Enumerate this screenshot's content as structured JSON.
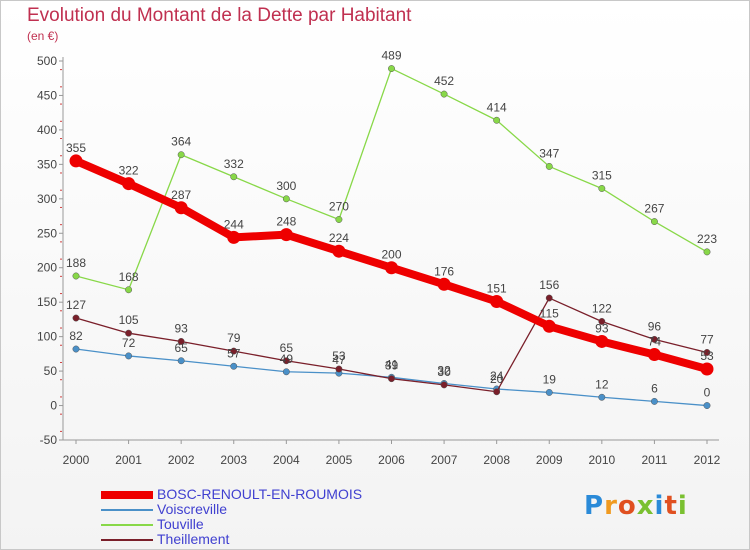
{
  "header": {
    "title": "Evolution du Montant de la Dette par Habitant",
    "subtitle": "(en €)"
  },
  "logo": {
    "text": "Proxiti"
  },
  "chart_data": {
    "type": "line",
    "title": "Evolution du Montant de la Dette par Habitant",
    "subtitle": "(en €)",
    "x": [
      "2000",
      "2001",
      "2002",
      "2003",
      "2004",
      "2005",
      "2006",
      "2007",
      "2008",
      "2009",
      "2010",
      "2011",
      "2012"
    ],
    "ylim": [
      -50,
      500
    ],
    "yticks": [
      -50,
      0,
      50,
      100,
      150,
      200,
      250,
      300,
      350,
      400,
      450,
      500
    ],
    "grid": false,
    "legend": "bottom-left",
    "series": [
      {
        "name": "BOSC-RENOULT-EN-ROUMOIS",
        "color": "#ee0000",
        "values": [
          355,
          322,
          287,
          244,
          248,
          224,
          200,
          176,
          151,
          115,
          93,
          74,
          53
        ],
        "labels": [
          "355",
          "322",
          "287",
          "244",
          "248",
          "224",
          "200",
          "176",
          "151",
          "115",
          "93",
          "74",
          "53"
        ]
      },
      {
        "name": "Voiscreville",
        "color": "#4a90c8",
        "values": [
          82,
          72,
          65,
          57,
          49,
          47,
          41,
          32,
          24,
          19,
          12,
          6,
          0
        ],
        "labels": [
          "82",
          "72",
          "65",
          "57",
          "49",
          "47",
          "41",
          "32",
          "24",
          "19",
          "12",
          "6",
          "0"
        ]
      },
      {
        "name": "Touville",
        "color": "#88d848",
        "values": [
          188,
          168,
          364,
          332,
          300,
          270,
          489,
          452,
          414,
          347,
          315,
          267,
          223
        ],
        "labels": [
          "188",
          "168",
          "364",
          "332",
          "300",
          "270",
          "489",
          "452",
          "414",
          "347",
          "315",
          "267",
          "223"
        ]
      },
      {
        "name": "Theillement",
        "color": "#7a1f2a",
        "values": [
          127,
          105,
          93,
          79,
          65,
          53,
          39,
          30,
          20,
          156,
          122,
          96,
          77
        ],
        "labels": [
          "127",
          "105",
          "93",
          "79",
          "65",
          "53",
          "39",
          "30",
          "20",
          "156",
          "122",
          "96",
          "77"
        ]
      }
    ]
  }
}
